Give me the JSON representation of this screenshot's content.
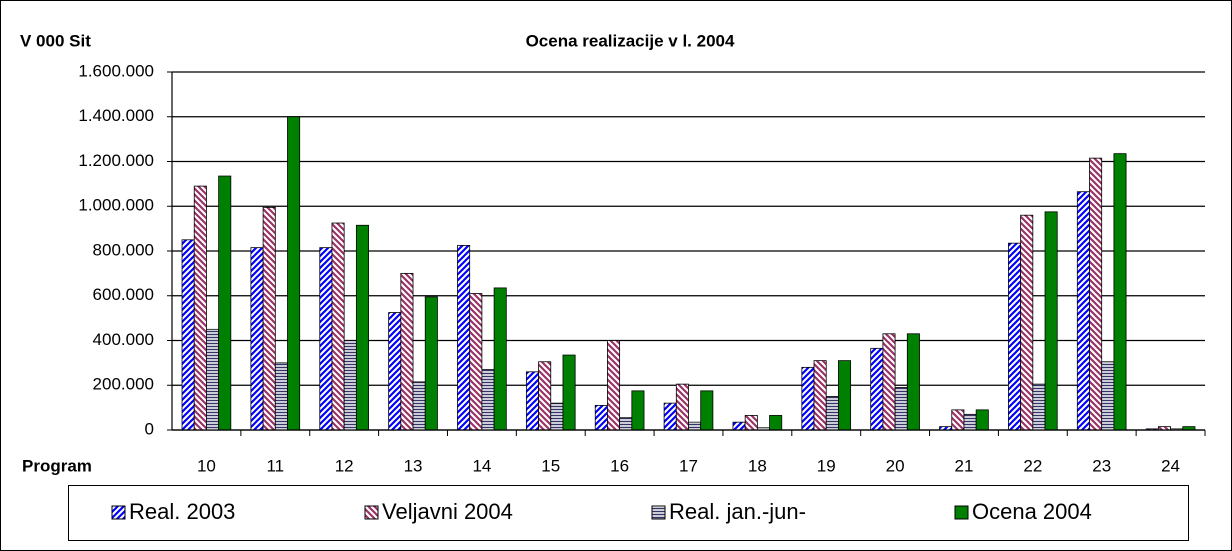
{
  "chart_data": {
    "type": "bar",
    "title": "Ocena realizacije v l. 2004",
    "y_label": "V 000 Sit",
    "x_label": "Program",
    "categories": [
      "10",
      "11",
      "12",
      "13",
      "14",
      "15",
      "16",
      "17",
      "18",
      "19",
      "20",
      "21",
      "22",
      "23",
      "24"
    ],
    "series": [
      {
        "name": "Real. 2003",
        "color": "#0000ff",
        "pattern": "diagonal-up",
        "values": [
          850000,
          815000,
          815000,
          525000,
          825000,
          260000,
          110000,
          120000,
          35000,
          280000,
          365000,
          15000,
          835000,
          1065000,
          5000
        ]
      },
      {
        "name": "Veljavni 2004",
        "color": "#993366",
        "pattern": "diagonal-down",
        "values": [
          1090000,
          995000,
          925000,
          700000,
          610000,
          305000,
          400000,
          205000,
          65000,
          310000,
          430000,
          90000,
          960000,
          1215000,
          15000
        ]
      },
      {
        "name": "Real. jan.-jun-",
        "color": "#333366",
        "pattern": "horizontal",
        "values": [
          450000,
          300000,
          400000,
          215000,
          270000,
          120000,
          55000,
          35000,
          10000,
          150000,
          190000,
          70000,
          205000,
          305000,
          5000
        ]
      },
      {
        "name": "Ocena 2004",
        "color": "#008000",
        "pattern": "solid",
        "values": [
          1135000,
          1400000,
          915000,
          595000,
          635000,
          335000,
          175000,
          175000,
          65000,
          310000,
          430000,
          90000,
          975000,
          1235000,
          15000
        ]
      }
    ],
    "ylim": [
      0,
      1600000
    ],
    "yticks": [
      0,
      {
        "value": 200000,
        "label": "200.000"
      },
      {
        "value": 400000,
        "label": "400.000"
      },
      {
        "value": 600000,
        "label": "600.000"
      },
      {
        "value": 800000,
        "label": "800.000"
      },
      {
        "value": 1000000,
        "label": "1.000.000"
      },
      {
        "value": 1200000,
        "label": "1.200.000"
      },
      {
        "value": 1400000,
        "label": "1.400.000"
      },
      {
        "value": 1600000,
        "label": "1.600.000"
      }
    ],
    "grid": true,
    "legend": "bottom"
  }
}
